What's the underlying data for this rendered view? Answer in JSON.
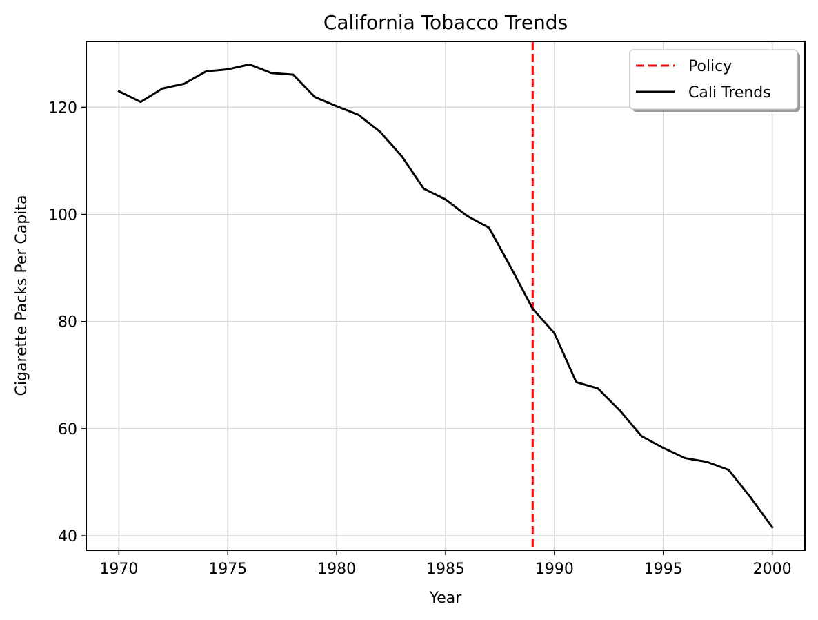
{
  "chart_data": {
    "type": "line",
    "title": "California Tobacco Trends",
    "xlabel": "Year",
    "ylabel": "Cigarette Packs Per Capita",
    "xlim": [
      1968.5,
      2001.5
    ],
    "ylim": [
      37.3,
      132.3
    ],
    "xticks": [
      1970,
      1975,
      1980,
      1985,
      1990,
      1995,
      2000
    ],
    "yticks": [
      40,
      60,
      80,
      100,
      120
    ],
    "grid": true,
    "legend_position": "top-right",
    "series": [
      {
        "name": "Cali Trends",
        "color": "#000000",
        "style": "solid",
        "x": [
          1970,
          1971,
          1972,
          1973,
          1974,
          1975,
          1976,
          1977,
          1978,
          1979,
          1980,
          1981,
          1982,
          1983,
          1984,
          1985,
          1986,
          1987,
          1988,
          1989,
          1990,
          1991,
          1992,
          1993,
          1994,
          1995,
          1996,
          1997,
          1998,
          1999,
          2000
        ],
        "y": [
          123.0,
          121.0,
          123.5,
          124.4,
          126.7,
          127.1,
          128.0,
          126.4,
          126.1,
          121.9,
          120.2,
          118.6,
          115.4,
          110.8,
          104.8,
          102.8,
          99.7,
          97.5,
          90.1,
          82.4,
          77.8,
          68.7,
          67.5,
          63.4,
          58.6,
          56.4,
          54.5,
          53.8,
          52.3,
          47.2,
          41.6
        ]
      }
    ],
    "reference_lines": [
      {
        "name": "Policy",
        "orientation": "vertical",
        "x": 1989,
        "color": "#ff0000",
        "style": "dashed"
      }
    ],
    "legend": [
      {
        "label": "Policy",
        "color": "#ff0000",
        "style": "dashed"
      },
      {
        "label": "Cali Trends",
        "color": "#000000",
        "style": "solid"
      }
    ]
  }
}
